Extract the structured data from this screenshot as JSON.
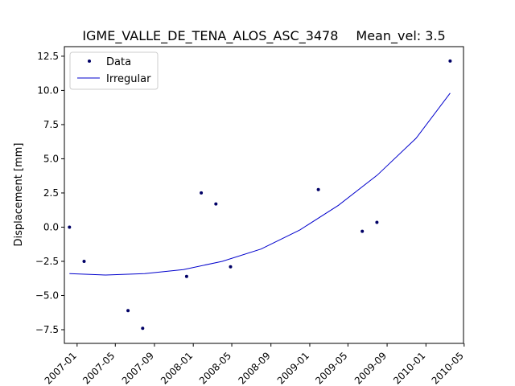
{
  "chart_data": {
    "type": "scatter",
    "title": "IGME_VALLE_DE_TENA_ALOS_ASC_3478",
    "subtitle": "Mean_vel: 3.5",
    "xlabel": "",
    "ylabel": "Displacement [mm]",
    "xlim": [
      "2006-11-22",
      "2010-04-29"
    ],
    "ylim": [
      -8.5,
      13.2
    ],
    "grid": false,
    "legend_position": "top-left",
    "x_ticks": [
      "2007-01",
      "2007-05",
      "2007-09",
      "2008-01",
      "2008-05",
      "2008-09",
      "2009-01",
      "2009-05",
      "2009-09",
      "2010-01",
      "2010-05"
    ],
    "y_ticks": [
      "12.5",
      "10.0",
      "7.5",
      "5.0",
      "2.5",
      "0.0",
      "−2.5",
      "−5.0",
      "−7.5"
    ],
    "y_tick_values": [
      12.5,
      10.0,
      7.5,
      5.0,
      2.5,
      0.0,
      -2.5,
      -5.0,
      -7.5
    ],
    "series": [
      {
        "name": "Data",
        "kind": "markers",
        "color": "#000066",
        "points": [
          {
            "x": "2006-12-08",
            "y": 0.0
          },
          {
            "x": "2007-01-23",
            "y": -2.5
          },
          {
            "x": "2007-06-10",
            "y": -6.1
          },
          {
            "x": "2007-07-26",
            "y": -7.4
          },
          {
            "x": "2007-12-11",
            "y": -3.6
          },
          {
            "x": "2008-01-26",
            "y": 2.5
          },
          {
            "x": "2008-03-12",
            "y": 1.7
          },
          {
            "x": "2008-04-27",
            "y": -2.9
          },
          {
            "x": "2009-01-28",
            "y": 2.75
          },
          {
            "x": "2009-06-15",
            "y": -0.3
          },
          {
            "x": "2009-07-31",
            "y": 0.35
          },
          {
            "x": "2010-03-18",
            "y": 12.15
          }
        ]
      },
      {
        "name": "Irregular",
        "kind": "line",
        "color": "#0000cc",
        "points": [
          {
            "x": "2006-12-08",
            "y": -3.4
          },
          {
            "x": "2007-04-01",
            "y": -3.5
          },
          {
            "x": "2007-08-01",
            "y": -3.4
          },
          {
            "x": "2007-12-01",
            "y": -3.1
          },
          {
            "x": "2008-04-01",
            "y": -2.5
          },
          {
            "x": "2008-08-01",
            "y": -1.6
          },
          {
            "x": "2008-12-01",
            "y": -0.2
          },
          {
            "x": "2009-04-01",
            "y": 1.6
          },
          {
            "x": "2009-08-01",
            "y": 3.8
          },
          {
            "x": "2009-12-01",
            "y": 6.5
          },
          {
            "x": "2010-03-18",
            "y": 9.8
          }
        ]
      }
    ]
  }
}
